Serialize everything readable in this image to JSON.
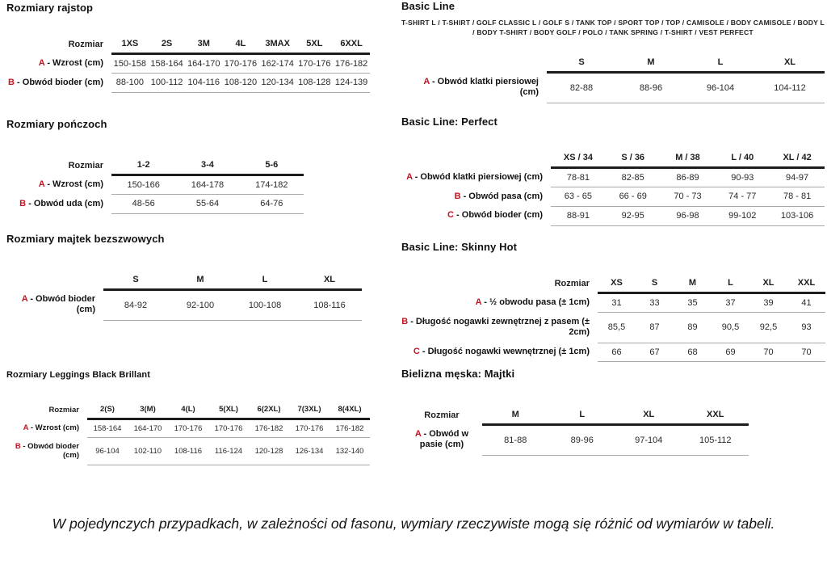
{
  "colors": {
    "accent_red": "#c11522",
    "rule_dark": "#1c1c1c",
    "rule_light": "#aaaaaa"
  },
  "footnote": "W pojedynczych przypadkach, w zależności od fasonu, wymiary rzeczywiste mogą się różnić od wymiarów w tabeli.",
  "sections": {
    "rajstop": {
      "title": "Rozmiary rajstop",
      "table": {
        "corner": "Rozmiar",
        "columns": [
          "1XS",
          "2S",
          "3M",
          "4L",
          "3MAX",
          "5XL",
          "6XXL"
        ],
        "rows": [
          {
            "letter": "A",
            "label": "- Wzrost (cm)",
            "values": [
              "150-158",
              "158-164",
              "164-170",
              "170-176",
              "162-174",
              "170-176",
              "176-182"
            ]
          },
          {
            "letter": "B",
            "label": "- Obwód bioder (cm)",
            "values": [
              "88-100",
              "100-112",
              "104-116",
              "108-120",
              "120-134",
              "108-128",
              "124-139"
            ]
          }
        ]
      }
    },
    "ponczochy": {
      "title": "Rozmiary pończoch",
      "table": {
        "corner": "Rozmiar",
        "columns": [
          "1-2",
          "3-4",
          "5-6"
        ],
        "rows": [
          {
            "letter": "A",
            "label": "- Wzrost (cm)",
            "values": [
              "150-166",
              "164-178",
              "174-182"
            ]
          },
          {
            "letter": "B",
            "label": "- Obwód uda (cm)",
            "values": [
              "48-56",
              "55-64",
              "64-76"
            ]
          }
        ]
      }
    },
    "majtki_bezszwowe": {
      "title": "Rozmiary majtek bezszwowych",
      "table": {
        "corner": "",
        "columns": [
          "S",
          "M",
          "L",
          "XL"
        ],
        "rows": [
          {
            "letter": "A",
            "label": "- Obwód bioder (cm)",
            "values": [
              "84-92",
              "92-100",
              "100-108",
              "108-116"
            ]
          }
        ]
      }
    },
    "leggings": {
      "title": "Rozmiary Leggings Black Brillant",
      "table": {
        "corner": "Rozmiar",
        "columns": [
          "2(S)",
          "3(M)",
          "4(L)",
          "5(XL)",
          "6(2XL)",
          "7(3XL)",
          "8(4XL)"
        ],
        "rows": [
          {
            "letter": "A",
            "label": "- Wzrost (cm)",
            "values": [
              "158-164",
              "164-170",
              "170-176",
              "170-176",
              "176-182",
              "170-176",
              "176-182"
            ]
          },
          {
            "letter": "B",
            "label": "- Obwód bioder (cm)",
            "values": [
              "96-104",
              "102-110",
              "108-116",
              "116-124",
              "120-128",
              "126-134",
              "132-140"
            ]
          }
        ]
      }
    },
    "basic_line": {
      "title": "Basic Line",
      "subtitle": "T-SHIRT L / T-SHIRT / GOLF CLASSIC L / GOLF S / TANK TOP / SPORT TOP / TOP / CAMISOLE / BODY CAMISOLE / BODY L / BODY T-SHIRT / BODY GOLF / POLO / TANK SPRING / T-SHIRT / VEST PERFECT",
      "table": {
        "corner": "",
        "columns": [
          "S",
          "M",
          "L",
          "XL"
        ],
        "rows": [
          {
            "letter": "A",
            "label": "- Obwód klatki piersiowej (cm)",
            "values": [
              "82-88",
              "88-96",
              "96-104",
              "104-112"
            ]
          }
        ]
      }
    },
    "basic_line_perfect": {
      "title": "Basic Line: Perfect",
      "table": {
        "corner": "",
        "columns": [
          "XS / 34",
          "S / 36",
          "M / 38",
          "L / 40",
          "XL / 42"
        ],
        "rows": [
          {
            "letter": "A",
            "label": "- Obwód klatki piersiowej (cm)",
            "values": [
              "78-81",
              "82-85",
              "86-89",
              "90-93",
              "94-97"
            ]
          },
          {
            "letter": "B",
            "label": "- Obwód pasa (cm)",
            "values": [
              "63 - 65",
              "66 - 69",
              "70 - 73",
              "74 - 77",
              "78 - 81"
            ]
          },
          {
            "letter": "C",
            "label": "- Obwód bioder (cm)",
            "values": [
              "88-91",
              "92-95",
              "96-98",
              "99-102",
              "103-106"
            ]
          }
        ]
      }
    },
    "basic_line_skinny_hot": {
      "title": "Basic Line: Skinny Hot",
      "table": {
        "corner": "Rozmiar",
        "columns": [
          "XS",
          "S",
          "M",
          "L",
          "XL",
          "XXL"
        ],
        "rows": [
          {
            "letter": "A",
            "label": "- ½ obwodu pasa (± 1cm)",
            "values": [
              "31",
              "33",
              "35",
              "37",
              "39",
              "41"
            ]
          },
          {
            "letter": "B",
            "label": "- Długość nogawki zewnętrznej z pasem (± 2cm)",
            "values": [
              "85,5",
              "87",
              "89",
              "90,5",
              "92,5",
              "93"
            ]
          },
          {
            "letter": "C",
            "label": "- Długość nogawki wewnętrznej (± 1cm)",
            "values": [
              "66",
              "67",
              "68",
              "69",
              "70",
              "70"
            ]
          }
        ]
      }
    },
    "bielizna_meska": {
      "title": "Bielizna męska: Majtki",
      "table": {
        "corner": "Rozmiar",
        "columns": [
          "M",
          "L",
          "XL",
          "XXL"
        ],
        "rows": [
          {
            "letter": "A",
            "label": "- Obwód w pasie (cm)",
            "values": [
              "81-88",
              "89-96",
              "97-104",
              "105-112"
            ]
          }
        ]
      }
    }
  }
}
